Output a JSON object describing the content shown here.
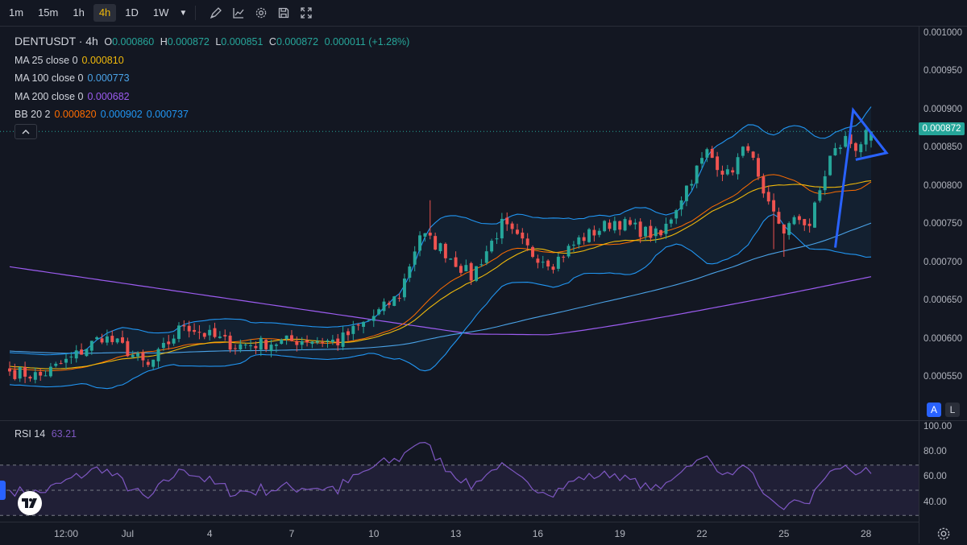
{
  "toolbar": {
    "timeframes": [
      "1m",
      "15m",
      "1h",
      "4h",
      "1D",
      "1W"
    ],
    "active_timeframe": "4h",
    "tools": [
      "draw-icon",
      "indicators-icon",
      "settings-icon",
      "save-icon",
      "fullscreen-icon"
    ]
  },
  "legend": {
    "symbol": "DENTUSDT",
    "interval": "· 4h",
    "o_label": "O",
    "o_value": "0.000860",
    "h_label": "H",
    "h_value": "0.000872",
    "l_label": "L",
    "l_value": "0.000851",
    "c_label": "C",
    "c_value": "0.000872",
    "change": "0.000011 (+1.28%)",
    "indicators": [
      {
        "name": "MA 25 close 0",
        "values": [
          "0.000810"
        ],
        "colors": [
          "#f0b90b"
        ]
      },
      {
        "name": "MA 100 close 0",
        "values": [
          "0.000773"
        ],
        "colors": [
          "#4aa3e8"
        ]
      },
      {
        "name": "MA 200 close 0",
        "values": [
          "0.000682"
        ],
        "colors": [
          "#9c5cf0"
        ]
      },
      {
        "name": "BB 20 2",
        "values": [
          "0.000820",
          "0.000902",
          "0.000737"
        ],
        "colors": [
          "#ff6d00",
          "#2196f3",
          "#2196f3"
        ]
      }
    ]
  },
  "rsi_legend": {
    "name": "RSI 14",
    "value": "63.21"
  },
  "price_tag": "0.000872",
  "scale_buttons": {
    "auto": "A",
    "log": "L"
  },
  "colors": {
    "background": "#131722",
    "up": "#26a69a",
    "down": "#ef5350",
    "ma25": "#f0b90b",
    "ma100": "#4aa3e8",
    "ma200": "#9c5cf0",
    "bb": "#2196f3",
    "rsi": "#7e57c2",
    "drawing": "#2962ff"
  },
  "chart_data": {
    "type": "candlestick",
    "symbol": "DENTUSDT",
    "interval": "4h",
    "price_axis": {
      "ticks": [
        "0.001000",
        "0.000950",
        "0.000900",
        "0.000850",
        "0.000800",
        "0.000750",
        "0.000700",
        "0.000650",
        "0.000600",
        "0.000550"
      ],
      "range": [
        0.00051,
        0.001005
      ]
    },
    "rsi_axis": {
      "ticks": [
        "100.00",
        "80.00",
        "60.00",
        "40.00"
      ],
      "range": [
        25,
        100
      ],
      "bands": [
        30,
        70
      ],
      "mid": 50
    },
    "time_labels": [
      {
        "label": "12:00",
        "index": 11
      },
      {
        "label": "Jul",
        "index": 23
      },
      {
        "label": "4",
        "index": 39
      },
      {
        "label": "7",
        "index": 55
      },
      {
        "label": "10",
        "index": 71
      },
      {
        "label": "13",
        "index": 87
      },
      {
        "label": "16",
        "index": 103
      },
      {
        "label": "19",
        "index": 119
      },
      {
        "label": "22",
        "index": 135
      },
      {
        "label": "25",
        "index": 151
      },
      {
        "label": "28",
        "index": 167
      }
    ],
    "close_anchors": [
      [
        0,
        0.000558
      ],
      [
        6,
        0.000552
      ],
      [
        12,
        0.000575
      ],
      [
        18,
        0.000604
      ],
      [
        22,
        0.00059
      ],
      [
        27,
        0.000564
      ],
      [
        34,
        0.00062
      ],
      [
        38,
        0.000607
      ],
      [
        44,
        0.000592
      ],
      [
        52,
        0.000596
      ],
      [
        58,
        0.0006
      ],
      [
        64,
        0.000597
      ],
      [
        70,
        0.000625
      ],
      [
        76,
        0.000658
      ],
      [
        80,
        0.000738
      ],
      [
        84,
        0.00072
      ],
      [
        90,
        0.000682
      ],
      [
        96,
        0.00075
      ],
      [
        102,
        0.000712
      ],
      [
        106,
        0.0007
      ],
      [
        111,
        0.00073
      ],
      [
        118,
        0.000755
      ],
      [
        124,
        0.00074
      ],
      [
        127,
        0.000735
      ],
      [
        132,
        0.0008
      ],
      [
        136,
        0.000845
      ],
      [
        140,
        0.000815
      ],
      [
        144,
        0.000855
      ],
      [
        147,
        0.000782
      ],
      [
        151,
        0.000743
      ],
      [
        154,
        0.000758
      ],
      [
        156,
        0.00075
      ],
      [
        160,
        0.000838
      ],
      [
        163,
        0.000862
      ],
      [
        165,
        0.000852
      ],
      [
        168,
        0.000872
      ]
    ],
    "last_candle": {
      "open": 0.00086,
      "high": 0.000872,
      "low": 0.000851,
      "close": 0.000872
    },
    "ma25_last": 0.00081,
    "ma100_last": 0.000773,
    "ma200_last": 0.000682,
    "ma200_start": 0.000695,
    "bb_last": {
      "middle": 0.00082,
      "upper": 0.000902,
      "lower": 0.000737
    },
    "rsi_last": 63.21,
    "drawing": {
      "type": "pennant",
      "points": [
        [
          161,
          0.00072
        ],
        [
          164.5,
          0.0009
        ],
        [
          171,
          0.000844
        ],
        [
          165,
          0.000835
        ],
        [
          171,
          0.000844
        ]
      ]
    }
  }
}
